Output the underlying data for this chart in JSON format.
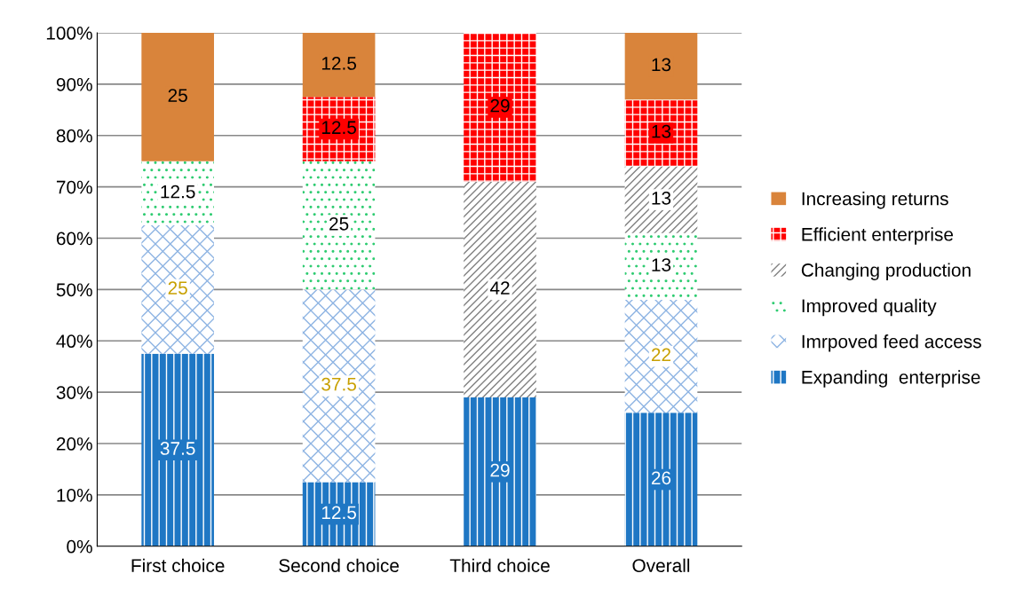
{
  "chart_data": {
    "type": "bar",
    "stacked": true,
    "categories": [
      "First choice",
      "Second choice",
      "Third choice",
      "Overall"
    ],
    "series": [
      {
        "name": "Expanding  enterprise",
        "color": "#1f77c4",
        "values": [
          37.5,
          12.5,
          29,
          26
        ],
        "value_labels": [
          "37.5",
          "12.5",
          "29",
          "26"
        ]
      },
      {
        "name": "Imrpoved feed access",
        "color": "#8eb4e3",
        "values": [
          25,
          37.5,
          null,
          22
        ],
        "value_labels": [
          "25",
          "37.5",
          null,
          "22"
        ]
      },
      {
        "name": "Improved quality",
        "color": "#2ecc71",
        "values": [
          12.5,
          25,
          null,
          13
        ],
        "value_labels": [
          "12.5",
          "25",
          null,
          "13"
        ]
      },
      {
        "name": "Changing production",
        "color": "#808080",
        "values": [
          null,
          null,
          42,
          13
        ],
        "value_labels": [
          null,
          null,
          "42",
          "13"
        ]
      },
      {
        "name": "Efficient enterprise",
        "color": "#ff0000",
        "values": [
          null,
          12.5,
          29,
          13
        ],
        "value_labels": [
          null,
          "12.5",
          "29",
          "13"
        ]
      },
      {
        "name": "Increasing returns",
        "color": "#d9843b",
        "values": [
          25,
          12.5,
          null,
          13
        ],
        "value_labels": [
          "25",
          "12.5",
          null,
          "13"
        ]
      }
    ],
    "ylim": [
      0,
      100
    ],
    "yticks": [
      {
        "value": 0,
        "label": "0%"
      },
      {
        "value": 10,
        "label": "10%"
      },
      {
        "value": 20,
        "label": "20%"
      },
      {
        "value": 30,
        "label": "30%"
      },
      {
        "value": 40,
        "label": "40%"
      },
      {
        "value": 50,
        "label": "50%"
      },
      {
        "value": 60,
        "label": "60%"
      },
      {
        "value": 70,
        "label": "70%"
      },
      {
        "value": 80,
        "label": "80%"
      },
      {
        "value": 90,
        "label": "90%"
      },
      {
        "value": 100,
        "label": "100%"
      }
    ],
    "grid": "y",
    "legend": "right"
  }
}
